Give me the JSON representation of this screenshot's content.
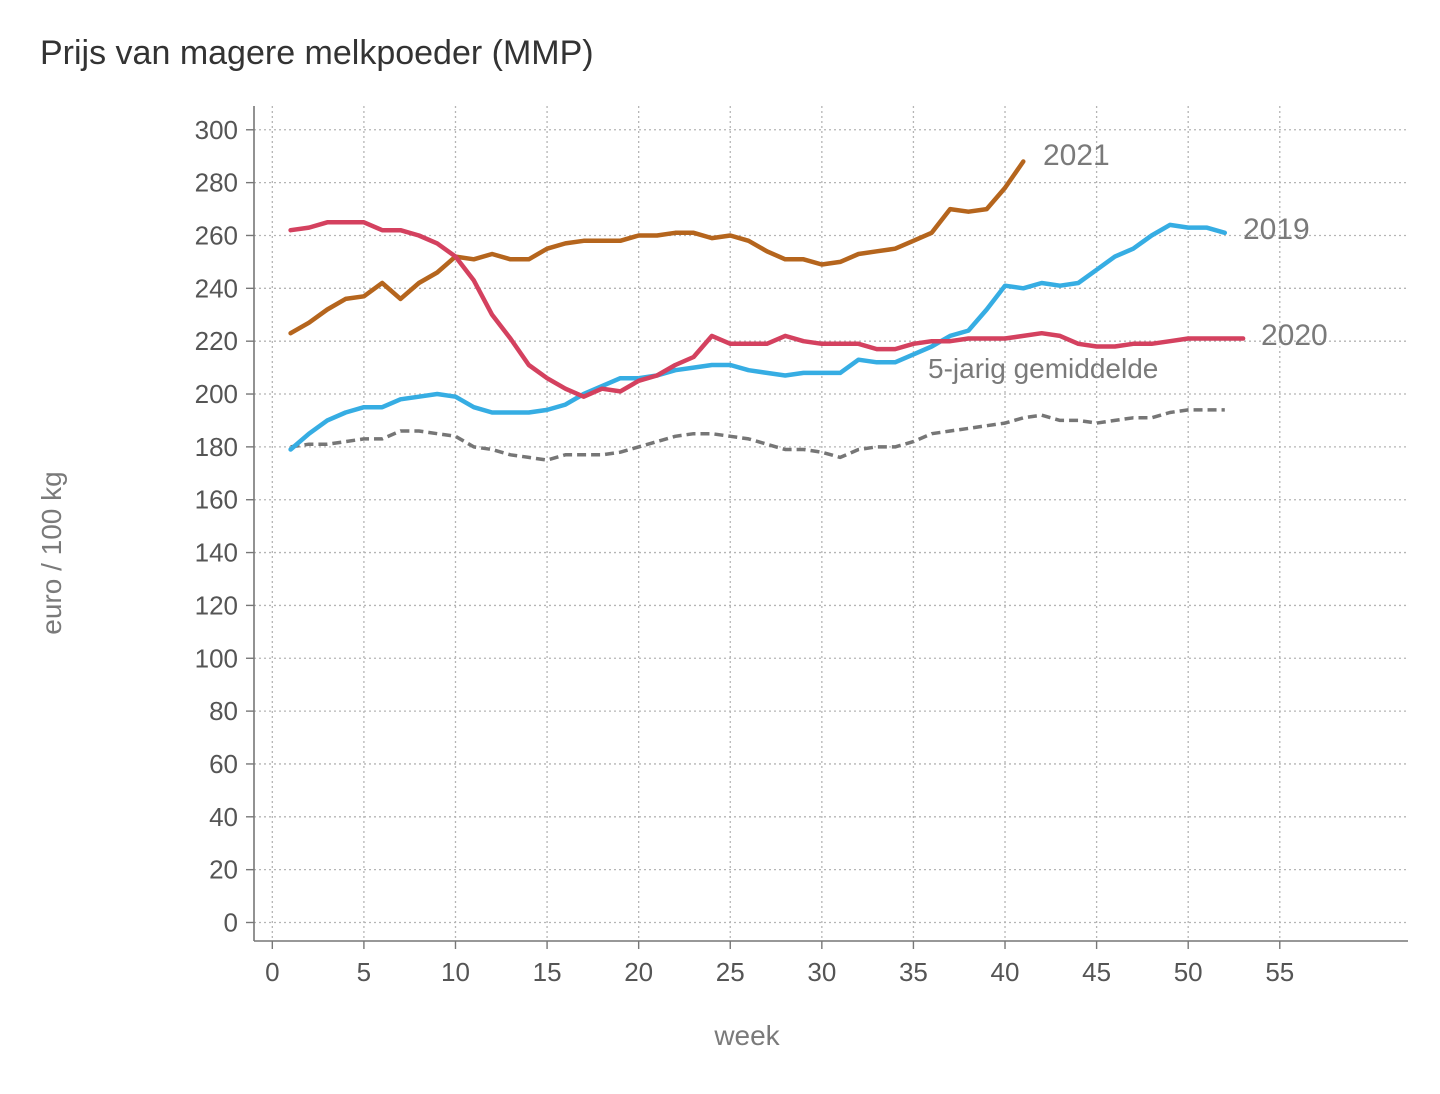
{
  "chart_data": {
    "type": "line",
    "title": "Prijs van magere melkpoeder (MMP)",
    "xlabel": "week",
    "ylabel": "euro / 100 kg",
    "xlim": [
      -1,
      62
    ],
    "ylim": [
      -7,
      309
    ],
    "x_ticks": [
      0,
      5,
      10,
      15,
      20,
      25,
      30,
      35,
      40,
      45,
      50,
      55
    ],
    "y_ticks": [
      0,
      20,
      40,
      60,
      80,
      100,
      120,
      140,
      160,
      180,
      200,
      220,
      240,
      260,
      280,
      300
    ],
    "grid": true,
    "series": [
      {
        "name": "2021",
        "color": "#b5651d",
        "dash": "solid",
        "x": [
          1,
          2,
          3,
          4,
          5,
          6,
          7,
          8,
          9,
          10,
          11,
          12,
          13,
          14,
          15,
          16,
          17,
          18,
          19,
          20,
          21,
          22,
          23,
          24,
          25,
          26,
          27,
          28,
          29,
          30,
          31,
          32,
          33,
          34,
          35,
          36,
          37,
          38,
          39,
          40,
          41
        ],
        "values": [
          223,
          227,
          232,
          236,
          237,
          242,
          236,
          242,
          246,
          252,
          251,
          253,
          251,
          251,
          255,
          257,
          258,
          258,
          258,
          260,
          260,
          261,
          261,
          259,
          260,
          258,
          254,
          251,
          251,
          249,
          250,
          253,
          254,
          255,
          258,
          261,
          270,
          269,
          270,
          278,
          288
        ]
      },
      {
        "name": "2019",
        "color": "#36ade3",
        "dash": "solid",
        "x": [
          1,
          2,
          3,
          4,
          5,
          6,
          7,
          8,
          9,
          10,
          11,
          12,
          13,
          14,
          15,
          16,
          17,
          18,
          19,
          20,
          21,
          22,
          23,
          24,
          25,
          26,
          27,
          28,
          29,
          30,
          31,
          32,
          33,
          34,
          35,
          36,
          37,
          38,
          39,
          40,
          41,
          42,
          43,
          44,
          45,
          46,
          47,
          48,
          49,
          50,
          51,
          52
        ],
        "values": [
          179,
          185,
          190,
          193,
          195,
          195,
          198,
          199,
          200,
          199,
          195,
          193,
          193,
          193,
          194,
          196,
          200,
          203,
          206,
          206,
          207,
          209,
          210,
          211,
          211,
          209,
          208,
          207,
          208,
          208,
          208,
          213,
          212,
          212,
          215,
          218,
          222,
          224,
          232,
          241,
          240,
          242,
          241,
          242,
          247,
          252,
          255,
          260,
          264,
          263,
          263,
          261
        ]
      },
      {
        "name": "2020",
        "color": "#d4415f",
        "dash": "solid",
        "x": [
          1,
          2,
          3,
          4,
          5,
          6,
          7,
          8,
          9,
          10,
          11,
          12,
          13,
          14,
          15,
          16,
          17,
          18,
          19,
          20,
          21,
          22,
          23,
          24,
          25,
          26,
          27,
          28,
          29,
          30,
          31,
          32,
          33,
          34,
          35,
          36,
          37,
          38,
          39,
          40,
          41,
          42,
          43,
          44,
          45,
          46,
          47,
          48,
          49,
          50,
          51,
          52,
          53
        ],
        "values": [
          262,
          263,
          265,
          265,
          265,
          262,
          262,
          260,
          257,
          252,
          243,
          230,
          221,
          211,
          206,
          202,
          199,
          202,
          201,
          205,
          207,
          211,
          214,
          222,
          219,
          219,
          219,
          222,
          220,
          219,
          219,
          219,
          217,
          217,
          219,
          220,
          220,
          221,
          221,
          221,
          222,
          223,
          222,
          219,
          218,
          218,
          219,
          219,
          220,
          221,
          221,
          221,
          221
        ]
      },
      {
        "name": "5-jarig gemiddelde",
        "color": "#767676",
        "dash": "dashed",
        "x": [
          1,
          2,
          3,
          4,
          5,
          6,
          7,
          8,
          9,
          10,
          11,
          12,
          13,
          14,
          15,
          16,
          17,
          18,
          19,
          20,
          21,
          22,
          23,
          24,
          25,
          26,
          27,
          28,
          29,
          30,
          31,
          32,
          33,
          34,
          35,
          36,
          37,
          38,
          39,
          40,
          41,
          42,
          43,
          44,
          45,
          46,
          47,
          48,
          49,
          50,
          51,
          52
        ],
        "values": [
          180,
          181,
          181,
          182,
          183,
          183,
          186,
          186,
          185,
          184,
          180,
          179,
          177,
          176,
          175,
          177,
          177,
          177,
          178,
          180,
          182,
          184,
          185,
          185,
          184,
          183,
          181,
          179,
          179,
          178,
          176,
          179,
          180,
          180,
          182,
          185,
          186,
          187,
          188,
          189,
          191,
          192,
          190,
          190,
          189,
          190,
          191,
          191,
          193,
          194,
          194,
          194
        ]
      }
    ]
  }
}
